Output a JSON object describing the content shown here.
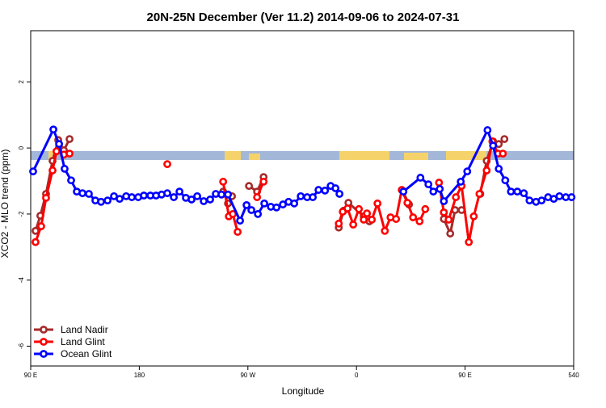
{
  "chart_data": {
    "type": "line",
    "title": "20N-25N December (Ver 11.2)   2014-09-06 to 2024-07-31",
    "x_label": "Longitude",
    "y_label": "XCO2 - MLO trend (ppm)",
    "xlim": [
      90,
      540
    ],
    "ylim": [
      -6.6,
      3.55
    ],
    "xticks": [
      {
        "value": 90,
        "label": "90 E"
      },
      180,
      {
        "value": 270,
        "label": "90 W"
      },
      {
        "value": 360,
        "label": "0"
      },
      {
        "value": 450,
        "label": "90 E"
      },
      540
    ],
    "yticks": [
      2,
      0,
      -2,
      -4,
      -6
    ],
    "legend": "bottom-left",
    "series": [
      {
        "name": "Land Nadir",
        "color": "#a52a2a",
        "x": [
          94.0,
          98.0,
          102.7,
          108.1,
          112.8,
          117.5,
          122.2,
          null,
          249.5,
          253.5,
          256.8,
          null,
          270.9,
          277.6,
          283.0,
          null,
          345.3,
          349.3,
          353.3,
          366.0,
          370.7,
          null,
          398.2,
          403.5,
          null,
          432.4,
          437.7,
          441.7,
          447.1,
          null,
          462.6,
          467.9,
          473.2,
          477.9,
          482.6
        ],
        "values": [
          -2.51,
          -2.05,
          -1.39,
          -0.39,
          0.24,
          -0.07,
          0.27,
          null,
          -1.32,
          -1.68,
          -1.46,
          null,
          -1.15,
          -1.32,
          -0.88,
          null,
          -2.41,
          -1.9,
          -1.66,
          -2.07,
          -2.22,
          null,
          -1.29,
          -1.71,
          null,
          -2.15,
          -2.59,
          -1.88,
          -1.88,
          null,
          -1.39,
          -0.39,
          0.2,
          0.12,
          0.27
        ]
      },
      {
        "name": "Land Glint",
        "color": "#ff0000",
        "x": [
          94.0,
          98.7,
          102.7,
          108.1,
          111.4,
          117.5,
          122.2,
          null,
          203.2,
          null,
          249.5,
          254.2,
          257.5,
          261.5,
          null,
          277.6,
          283.0,
          null,
          345.3,
          348.6,
          352.6,
          357.3,
          362.0,
          366.0,
          368.7,
          372.7,
          377.4,
          383.5,
          388.2,
          392.8,
          397.5,
          402.2,
          406.9,
          412.3,
          417.0,
          null,
          428.4,
          432.4,
          436.4,
          442.4,
          447.1,
          453.1,
          457.2,
          461.9,
          467.9,
          472.6,
          477.3,
          481.3
        ],
        "values": [
          -2.85,
          -2.37,
          -1.51,
          -0.68,
          -0.1,
          -0.2,
          -0.17,
          null,
          -0.49,
          null,
          -1.02,
          -2.07,
          -2.0,
          -2.54,
          null,
          -1.49,
          -1.02,
          null,
          -2.29,
          -1.93,
          -1.83,
          -2.32,
          -1.85,
          -2.17,
          -1.98,
          -2.17,
          -1.68,
          -2.51,
          -2.1,
          -2.15,
          -1.27,
          -1.66,
          -2.1,
          -2.22,
          -1.85,
          null,
          -1.05,
          -1.95,
          -2.17,
          -1.49,
          -1.15,
          -2.85,
          -2.07,
          -1.39,
          -0.68,
          0.2,
          -0.17,
          -0.17
        ]
      },
      {
        "name": "Ocean Glint",
        "color": "#0000ff",
        "x": [
          92.0,
          108.8,
          113.5,
          118.1,
          123.5,
          128.2,
          132.9,
          138.2,
          143.6,
          148.3,
          153.7,
          159.0,
          163.7,
          169.1,
          173.8,
          179.1,
          183.8,
          189.2,
          193.9,
          198.5,
          203.2,
          208.6,
          213.3,
          218.6,
          223.3,
          228.0,
          233.4,
          238.7,
          243.4,
          248.1,
          253.5,
          263.5,
          268.9,
          272.9,
          278.3,
          283.6,
          289.0,
          293.7,
          299.0,
          303.7,
          308.4,
          313.8,
          319.1,
          323.8,
          328.5,
          333.9,
          338.6,
          342.6,
          345.9,
          null,
          398.9,
          413.0,
          419.6,
          423.7,
          429.0,
          432.4,
          446.4,
          451.8,
          468.6,
          473.2,
          477.9,
          483.3,
          488.0,
          493.3,
          498.7,
          503.4,
          508.8,
          513.4,
          518.8,
          523.5,
          528.2,
          533.5,
          538.2
        ],
        "values": [
          -0.71,
          0.56,
          0.12,
          -0.63,
          -0.98,
          -1.32,
          -1.37,
          -1.39,
          -1.59,
          -1.63,
          -1.59,
          -1.46,
          -1.54,
          -1.46,
          -1.49,
          -1.49,
          -1.44,
          -1.44,
          -1.44,
          -1.41,
          -1.37,
          -1.49,
          -1.32,
          -1.51,
          -1.56,
          -1.46,
          -1.61,
          -1.56,
          -1.39,
          -1.41,
          -1.41,
          -2.2,
          -1.73,
          -1.88,
          -2.0,
          -1.68,
          -1.78,
          -1.8,
          -1.71,
          -1.63,
          -1.68,
          -1.46,
          -1.49,
          -1.49,
          -1.27,
          -1.29,
          -1.15,
          -1.22,
          -1.39,
          null,
          -1.32,
          -0.9,
          -1.1,
          -1.32,
          -1.24,
          -1.61,
          -1.02,
          -0.71,
          0.54,
          0.07,
          -0.63,
          -0.98,
          -1.32,
          -1.32,
          -1.37,
          -1.59,
          -1.63,
          -1.59,
          -1.49,
          -1.54,
          -1.46,
          -1.49,
          -1.49
        ]
      }
    ]
  }
}
